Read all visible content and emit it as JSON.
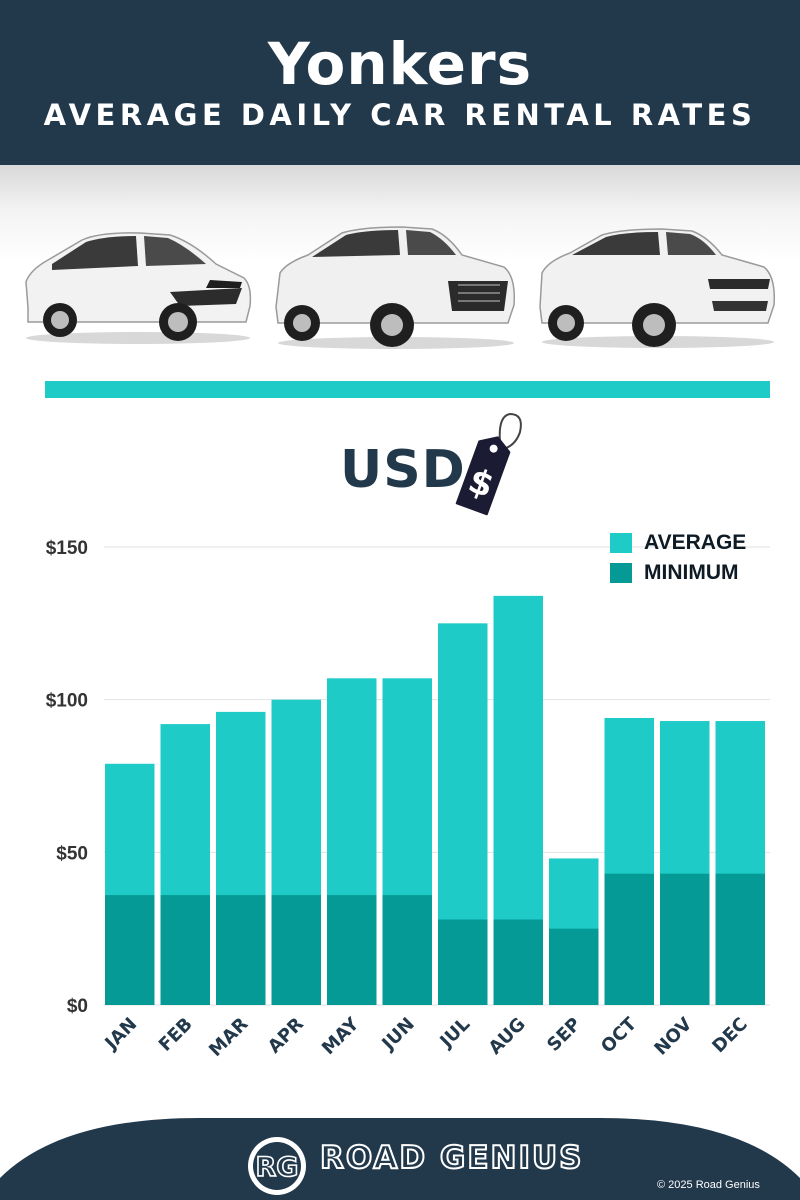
{
  "header": {
    "title": "Yonkers",
    "subtitle": "AVERAGE DAILY CAR RENTAL RATES"
  },
  "currency_label": "USD",
  "tag_symbol": "$",
  "colors": {
    "navy": "#22384b",
    "average": "#1ecbc7",
    "minimum": "#069a96",
    "accent_bar": "#1ecbc7"
  },
  "chart_data": {
    "type": "bar",
    "categories": [
      "JAN",
      "FEB",
      "MAR",
      "APR",
      "MAY",
      "JUN",
      "JUL",
      "AUG",
      "SEP",
      "OCT",
      "NOV",
      "DEC"
    ],
    "series": [
      {
        "name": "AVERAGE",
        "values": [
          79,
          92,
          96,
          100,
          107,
          107,
          125,
          134,
          48,
          94,
          93,
          93
        ]
      },
      {
        "name": "MINIMUM",
        "values": [
          36,
          36,
          36,
          36,
          36,
          36,
          28,
          28,
          25,
          43,
          43,
          43
        ]
      }
    ],
    "y_ticks": [
      "$0",
      "$50",
      "$100",
      "$150"
    ],
    "y_tick_values": [
      0,
      50,
      100,
      150
    ],
    "ylim": [
      0,
      150
    ],
    "grid": true,
    "legend_position": "top-right",
    "title": "",
    "xlabel": "",
    "ylabel": ""
  },
  "footer": {
    "logo_text": "RG",
    "brand": "ROAD GENIUS",
    "copyright": "© 2025 Road Genius"
  }
}
